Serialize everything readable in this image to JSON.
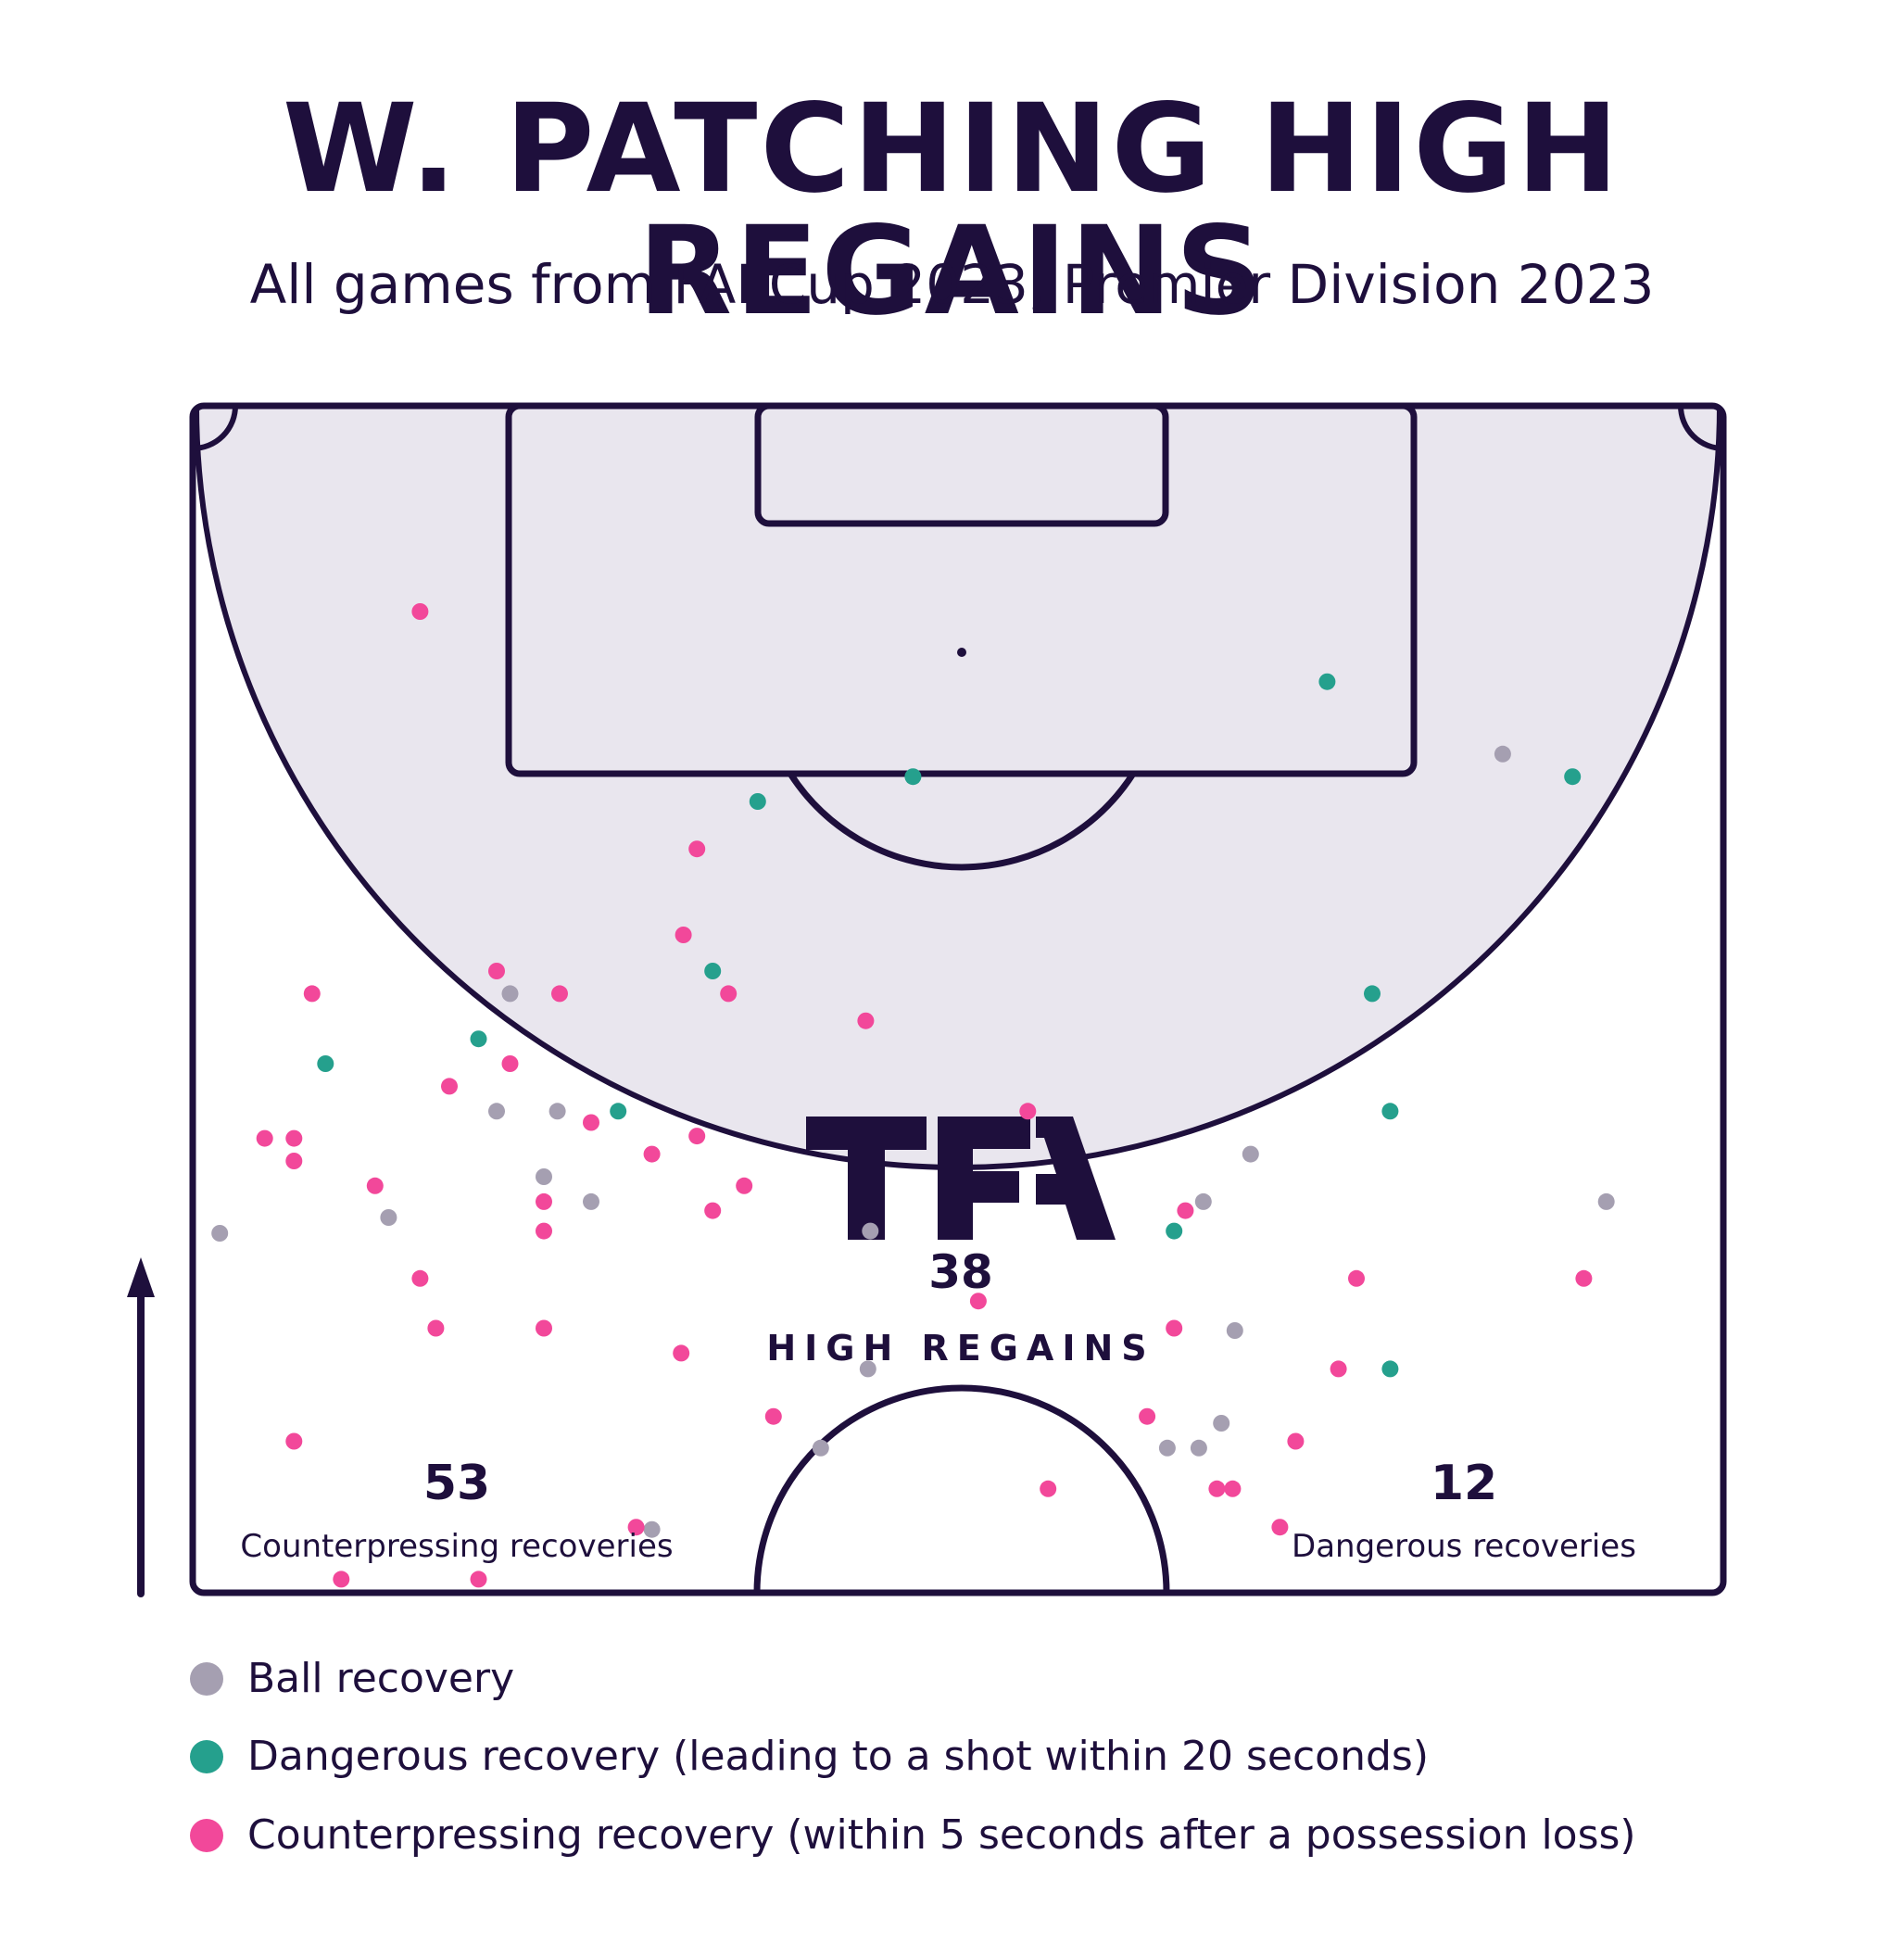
{
  "title": "W. PATCHING HIGH REGAINS",
  "subtitle": "All games from FAI Cup 2023, Premier Division 2023",
  "logo_text": "TFA",
  "colors": {
    "ink": "#1e0f3c",
    "pitch_fill": "#e9e6ee",
    "ball_recovery": "#a59fb1",
    "dangerous_recovery": "#25a08d",
    "counterpressing_recovery": "#f2489a"
  },
  "stats": {
    "high_regains": {
      "value": "38",
      "label": "HIGH REGAINS"
    },
    "counterpressing": {
      "value": "53",
      "label": "Counterpressing recoveries"
    },
    "dangerous": {
      "value": "12",
      "label": "Dangerous recoveries"
    }
  },
  "legend": [
    {
      "key": "ball",
      "label": "Ball recovery",
      "color": "#a59fb1"
    },
    {
      "key": "dangerous",
      "label": "Dangerous recovery (leading to a shot within 20 seconds)",
      "color": "#25a08d"
    },
    {
      "key": "counter",
      "label": "Counterpressing recovery (within 5 seconds after a possession loss)",
      "color": "#f2489a"
    }
  ],
  "chart_data": {
    "type": "scatter",
    "title": "W. PATCHING HIGH REGAINS",
    "subtitle": "All games from FAI Cup 2023, Premier Division 2023",
    "xlabel": "",
    "ylabel": "",
    "xlim": [
      0,
      68
    ],
    "ylim": [
      52.5,
      105
    ],
    "note": "Attacking half of the pitch, attacking direction upward; x = pitch width (m), y = distance from own goal line (m)",
    "series": [
      {
        "name": "Ball recovery",
        "color": "#a59fb1",
        "points": [
          {
            "x": 1.2,
            "y": 68.4
          },
          {
            "x": 8.7,
            "y": 69.1
          },
          {
            "x": 14.1,
            "y": 79.0
          },
          {
            "x": 13.5,
            "y": 73.8
          },
          {
            "x": 16.2,
            "y": 73.8
          },
          {
            "x": 15.6,
            "y": 70.9
          },
          {
            "x": 17.7,
            "y": 69.8
          },
          {
            "x": 30.1,
            "y": 68.5
          },
          {
            "x": 44.9,
            "y": 69.8
          },
          {
            "x": 47.0,
            "y": 71.9
          },
          {
            "x": 58.2,
            "y": 89.6
          },
          {
            "x": 62.8,
            "y": 69.8
          },
          {
            "x": 30.0,
            "y": 62.4
          },
          {
            "x": 27.9,
            "y": 58.9
          },
          {
            "x": 46.3,
            "y": 64.1
          },
          {
            "x": 45.7,
            "y": 60.0
          },
          {
            "x": 43.3,
            "y": 58.9
          },
          {
            "x": 44.7,
            "y": 58.9
          },
          {
            "x": 20.4,
            "y": 55.3
          }
        ]
      },
      {
        "name": "Dangerous recovery (leading to a shot within 20 seconds)",
        "color": "#25a08d",
        "points": [
          {
            "x": 50.4,
            "y": 92.8
          },
          {
            "x": 32.0,
            "y": 88.6
          },
          {
            "x": 25.1,
            "y": 87.5
          },
          {
            "x": 61.3,
            "y": 88.6
          },
          {
            "x": 23.1,
            "y": 80.0
          },
          {
            "x": 12.7,
            "y": 77.0
          },
          {
            "x": 5.9,
            "y": 75.9
          },
          {
            "x": 52.4,
            "y": 79.0
          },
          {
            "x": 18.9,
            "y": 73.8
          },
          {
            "x": 53.2,
            "y": 73.8
          },
          {
            "x": 43.6,
            "y": 68.5
          },
          {
            "x": 53.2,
            "y": 62.4
          }
        ]
      },
      {
        "name": "Counterpressing recovery (within 5 seconds after a possession loss)",
        "color": "#f2489a",
        "points": [
          {
            "x": 10.1,
            "y": 95.9
          },
          {
            "x": 22.4,
            "y": 85.4
          },
          {
            "x": 21.8,
            "y": 81.6
          },
          {
            "x": 13.5,
            "y": 80.0
          },
          {
            "x": 16.3,
            "y": 79.0
          },
          {
            "x": 23.8,
            "y": 79.0
          },
          {
            "x": 5.3,
            "y": 79.0
          },
          {
            "x": 29.9,
            "y": 77.8
          },
          {
            "x": 14.1,
            "y": 75.9
          },
          {
            "x": 11.4,
            "y": 74.9
          },
          {
            "x": 17.7,
            "y": 73.3
          },
          {
            "x": 22.4,
            "y": 72.7
          },
          {
            "x": 15.6,
            "y": 69.8
          },
          {
            "x": 20.4,
            "y": 71.9
          },
          {
            "x": 3.2,
            "y": 72.6
          },
          {
            "x": 4.5,
            "y": 72.6
          },
          {
            "x": 4.5,
            "y": 71.6
          },
          {
            "x": 8.1,
            "y": 70.5
          },
          {
            "x": 23.1,
            "y": 69.4
          },
          {
            "x": 24.5,
            "y": 70.5
          },
          {
            "x": 15.6,
            "y": 68.5
          },
          {
            "x": 10.1,
            "y": 66.4
          },
          {
            "x": 10.8,
            "y": 64.2
          },
          {
            "x": 15.6,
            "y": 64.2
          },
          {
            "x": 21.7,
            "y": 63.1
          },
          {
            "x": 37.1,
            "y": 73.8
          },
          {
            "x": 34.9,
            "y": 65.4
          },
          {
            "x": 44.1,
            "y": 69.4
          },
          {
            "x": 51.7,
            "y": 66.4
          },
          {
            "x": 61.8,
            "y": 66.4
          },
          {
            "x": 43.6,
            "y": 64.2
          },
          {
            "x": 50.9,
            "y": 62.4
          },
          {
            "x": 25.8,
            "y": 60.3
          },
          {
            "x": 42.4,
            "y": 60.3
          },
          {
            "x": 49.0,
            "y": 59.2
          },
          {
            "x": 4.5,
            "y": 59.2
          },
          {
            "x": 38.0,
            "y": 57.1
          },
          {
            "x": 45.5,
            "y": 57.1
          },
          {
            "x": 46.2,
            "y": 57.1
          },
          {
            "x": 48.3,
            "y": 55.4
          },
          {
            "x": 19.7,
            "y": 55.4
          },
          {
            "x": 6.6,
            "y": 53.1
          },
          {
            "x": 12.7,
            "y": 53.1
          }
        ]
      }
    ]
  }
}
